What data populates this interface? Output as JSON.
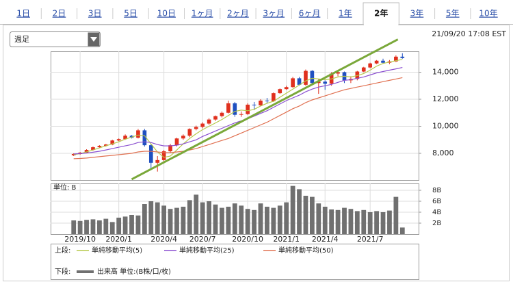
{
  "tabs": {
    "items": [
      "1日",
      "2日",
      "3日",
      "5日",
      "10日",
      "1ヶ月",
      "2ヶ月",
      "3ヶ月",
      "6ヶ月",
      "1年",
      "2年",
      "3年",
      "5年",
      "10年"
    ],
    "active": 10
  },
  "period_select": "週足",
  "timestamp": "21/09/20 17:08 EST",
  "chart_data": {
    "type": "candlestick",
    "categories": [
      null,
      "2019/10",
      null,
      null,
      null,
      null,
      null,
      "2020/1",
      null,
      null,
      null,
      null,
      null,
      null,
      "2020/4",
      null,
      null,
      null,
      null,
      null,
      "2020/7",
      null,
      null,
      null,
      null,
      null,
      null,
      "2020/10",
      null,
      null,
      null,
      null,
      null,
      "2021/1",
      null,
      null,
      null,
      null,
      null,
      "2021/4",
      null,
      null,
      null,
      null,
      null,
      null,
      "2021/7",
      null,
      null,
      null,
      null,
      null
    ],
    "open": [
      7850,
      7950,
      8050,
      8250,
      8450,
      8550,
      8650,
      8950,
      9050,
      9300,
      9150,
      9700,
      8600,
      7300,
      7500,
      8150,
      8600,
      9100,
      9300,
      9800,
      9950,
      10200,
      10500,
      10750,
      11000,
      11700,
      10850,
      10900,
      11600,
      11550,
      11900,
      11850,
      12450,
      12750,
      12900,
      13550,
      13070,
      14100,
      13200,
      13300,
      13150,
      13900,
      14000,
      13400,
      13500,
      14050,
      14350,
      14650,
      14850,
      14700,
      14800,
      15150
    ],
    "high": [
      8000,
      8100,
      8300,
      8500,
      8600,
      8700,
      9000,
      9100,
      9400,
      9350,
      9800,
      9800,
      8700,
      7800,
      8250,
      8700,
      9150,
      9400,
      9850,
      10050,
      10300,
      10600,
      10800,
      11100,
      11900,
      11800,
      11100,
      11700,
      11800,
      12000,
      12100,
      12500,
      12800,
      13000,
      13650,
      13650,
      14200,
      14150,
      13500,
      13400,
      14000,
      14100,
      14050,
      13700,
      14100,
      14400,
      14700,
      14900,
      15000,
      14900,
      15250,
      15400
    ],
    "low": [
      7800,
      7900,
      8000,
      8200,
      8400,
      8500,
      8600,
      8900,
      9000,
      9100,
      9100,
      8500,
      6900,
      6650,
      7400,
      8050,
      8500,
      9000,
      9200,
      9700,
      9850,
      10100,
      10400,
      10650,
      10950,
      10700,
      10700,
      10850,
      11200,
      11500,
      11700,
      11800,
      12400,
      12700,
      12850,
      13000,
      13000,
      13100,
      12400,
      12700,
      13000,
      13700,
      13200,
      13200,
      13400,
      14000,
      14300,
      14600,
      14650,
      14600,
      14750,
      15000
    ],
    "close": [
      7950,
      8050,
      8250,
      8450,
      8550,
      8650,
      8950,
      9050,
      9300,
      9150,
      9700,
      8600,
      7300,
      7500,
      8150,
      8600,
      9100,
      9300,
      9800,
      9950,
      10200,
      10500,
      10750,
      11000,
      11700,
      10850,
      10900,
      11600,
      11550,
      11900,
      11850,
      12450,
      12750,
      12900,
      13550,
      13070,
      14100,
      13200,
      13300,
      13150,
      13900,
      14000,
      13400,
      13500,
      14050,
      14350,
      14650,
      14850,
      14700,
      14800,
      15150,
      15050
    ],
    "up_color": "#e0301e",
    "down_color": "#2050c0",
    "series": [
      {
        "name": "単純移動平均(5)",
        "color": "#b5c84a",
        "values": [
          7900,
          7980,
          8100,
          8250,
          8400,
          8550,
          8700,
          8850,
          9050,
          9200,
          9350,
          9300,
          8700,
          8100,
          7700,
          7800,
          8250,
          8700,
          9100,
          9450,
          9750,
          10000,
          10250,
          10500,
          10800,
          11100,
          11200,
          11150,
          11250,
          11500,
          11700,
          11850,
          12150,
          12450,
          12750,
          13050,
          13350,
          13550,
          13500,
          13450,
          13500,
          13650,
          13700,
          13650,
          13750,
          13900,
          14150,
          14450,
          14650,
          14750,
          14850,
          14950
        ]
      },
      {
        "name": "単純移動平均(25)",
        "color": "#8a4fd0",
        "values": [
          7950,
          7980,
          8020,
          8080,
          8150,
          8250,
          8350,
          8450,
          8550,
          8650,
          8800,
          8850,
          8800,
          8650,
          8550,
          8550,
          8600,
          8700,
          8850,
          9000,
          9250,
          9450,
          9650,
          9850,
          10050,
          10250,
          10400,
          10550,
          10750,
          10950,
          11150,
          11400,
          11650,
          11900,
          12100,
          12300,
          12550,
          12750,
          12900,
          13000,
          13100,
          13250,
          13400,
          13450,
          13550,
          13650,
          13800,
          13950,
          14050,
          14150,
          14250,
          14350
        ]
      },
      {
        "name": "単純移動平均(50)",
        "color": "#e07050",
        "values": [
          7600,
          7620,
          7650,
          7700,
          7750,
          7800,
          7850,
          7900,
          7950,
          8000,
          8100,
          8150,
          8150,
          8100,
          8050,
          8050,
          8100,
          8150,
          8250,
          8350,
          8500,
          8650,
          8800,
          8950,
          9100,
          9300,
          9500,
          9700,
          9900,
          10100,
          10300,
          10550,
          10800,
          11050,
          11300,
          11500,
          11750,
          11950,
          12100,
          12250,
          12400,
          12550,
          12700,
          12800,
          12900,
          13000,
          13100,
          13200,
          13300,
          13400,
          13500,
          13600
        ]
      }
    ],
    "trendline": {
      "color": "#7aa83a",
      "x": [
        9,
        50.3
      ],
      "values": [
        6080,
        16430
      ]
    },
    "ylim": [
      6025,
      15545
    ],
    "yticks": [
      {
        "value": 8000,
        "label": "8,000"
      },
      {
        "value": 10000,
        "label": "10,000"
      },
      {
        "value": 12000,
        "label": "12,000"
      },
      {
        "value": 14000,
        "label": "14,000"
      }
    ],
    "grid": true,
    "volume": {
      "name": "出来高 単位:(B株/口/枚)",
      "axis_label": "単位: B",
      "color": "#707070",
      "values": [
        2.5,
        2.4,
        2.6,
        2.7,
        2.5,
        2.8,
        2.2,
        3.0,
        3.2,
        3.5,
        3.4,
        5.5,
        6.0,
        5.8,
        5.2,
        4.6,
        4.8,
        5.0,
        6.2,
        7.2,
        5.8,
        6.0,
        5.4,
        4.8,
        5.0,
        5.6,
        5.2,
        4.6,
        4.4,
        5.6,
        5.0,
        4.8,
        5.2,
        5.8,
        8.8,
        8.2,
        7.0,
        6.8,
        5.6,
        5.0,
        4.5,
        4.4,
        4.8,
        4.6,
        4.2,
        4.4,
        4.0,
        4.2,
        4.0,
        4.3,
        6.8,
        1.2
      ],
      "ylim": [
        0,
        9.25
      ],
      "yticks": [
        {
          "value": 2,
          "label": "2B"
        },
        {
          "value": 4,
          "label": "4B"
        },
        {
          "value": 6,
          "label": "6B"
        },
        {
          "value": 8,
          "label": "8B"
        }
      ]
    },
    "legend_groups": [
      "上段:",
      "下段:"
    ]
  }
}
